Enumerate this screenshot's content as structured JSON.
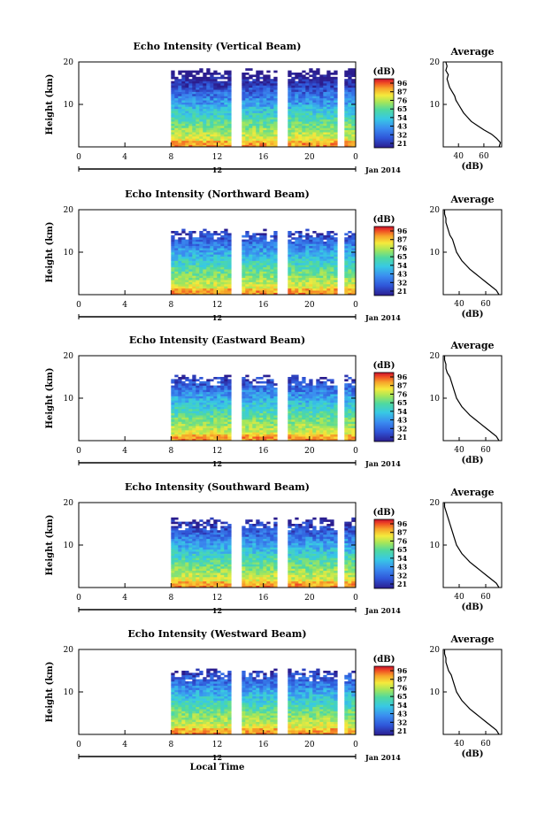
{
  "chart_data": [
    {
      "type": "heatmap",
      "title": "Echo Intensity (Vertical Beam)",
      "ylabel": "Height (km)",
      "yticks": [
        "20",
        "10"
      ],
      "xticks": [
        "0",
        "4",
        "8",
        "12",
        "16",
        "20",
        "0"
      ],
      "date_tick": "12",
      "date_label": "Jan 2014",
      "ylim": [
        0,
        20
      ],
      "xlim": [
        0,
        24
      ],
      "data_start_hour": 8,
      "gaps_hours": [
        13.5,
        17.5,
        22.5
      ],
      "cloud_top_km": 18,
      "colorbar": {
        "title": "(dB)",
        "levels": [
          "96",
          "87",
          "76",
          "65",
          "54",
          "43",
          "32",
          "21"
        ]
      },
      "profile": {
        "title": "Average",
        "xlabel": "(dB)",
        "xticks": [
          "40",
          "60"
        ],
        "yticks": [
          "20",
          "10"
        ],
        "xlim": [
          28,
          74
        ],
        "ylim": [
          0,
          20
        ],
        "points": [
          [
            72,
            0
          ],
          [
            73,
            1
          ],
          [
            70,
            2
          ],
          [
            66,
            3
          ],
          [
            60,
            4
          ],
          [
            55,
            5
          ],
          [
            50,
            6
          ],
          [
            47,
            7
          ],
          [
            44,
            8
          ],
          [
            42,
            9
          ],
          [
            40,
            10
          ],
          [
            38,
            11
          ],
          [
            37,
            12
          ],
          [
            35,
            13
          ],
          [
            33,
            14
          ],
          [
            32,
            15
          ],
          [
            31,
            16
          ],
          [
            32,
            17
          ],
          [
            30,
            18
          ],
          [
            31,
            19
          ],
          [
            30,
            20
          ]
        ]
      }
    },
    {
      "type": "heatmap",
      "title": "Echo Intensity (Northward Beam)",
      "ylabel": "Height (km)",
      "yticks": [
        "20",
        "10"
      ],
      "xticks": [
        "0",
        "4",
        "8",
        "12",
        "16",
        "20",
        "0"
      ],
      "date_tick": "12",
      "date_label": "Jan 2014",
      "ylim": [
        0,
        20
      ],
      "xlim": [
        0,
        24
      ],
      "data_start_hour": 8,
      "gaps_hours": [
        13.5,
        17.5,
        22.5
      ],
      "cloud_top_km": 15,
      "colorbar": {
        "title": "(dB)",
        "levels": [
          "96",
          "87",
          "76",
          "65",
          "54",
          "43",
          "32",
          "21"
        ]
      },
      "profile": {
        "title": "Average",
        "xlabel": "(dB)",
        "xticks": [
          "40",
          "60"
        ],
        "yticks": [
          "20",
          "10"
        ],
        "xlim": [
          28,
          72
        ],
        "ylim": [
          0,
          20
        ],
        "points": [
          [
            70,
            0
          ],
          [
            68,
            1
          ],
          [
            64,
            2
          ],
          [
            60,
            3
          ],
          [
            56,
            4
          ],
          [
            52,
            5
          ],
          [
            48,
            6
          ],
          [
            45,
            7
          ],
          [
            42,
            8
          ],
          [
            40,
            9
          ],
          [
            38,
            10
          ],
          [
            37,
            11
          ],
          [
            36,
            12
          ],
          [
            35,
            13
          ],
          [
            33,
            14
          ],
          [
            32,
            15
          ],
          [
            31,
            16
          ],
          [
            30,
            17
          ],
          [
            30,
            18
          ],
          [
            29,
            19
          ],
          [
            29,
            20
          ]
        ]
      }
    },
    {
      "type": "heatmap",
      "title": "Echo Intensity (Eastward Beam)",
      "ylabel": "Height (km)",
      "yticks": [
        "20",
        "10"
      ],
      "xticks": [
        "0",
        "4",
        "8",
        "12",
        "16",
        "20",
        "0"
      ],
      "date_tick": "12",
      "date_label": "Jan 2014",
      "ylim": [
        0,
        20
      ],
      "xlim": [
        0,
        24
      ],
      "data_start_hour": 8,
      "gaps_hours": [
        13.5,
        17.5,
        22.5
      ],
      "cloud_top_km": 15,
      "colorbar": {
        "title": "(dB)",
        "levels": [
          "96",
          "87",
          "76",
          "65",
          "54",
          "43",
          "32",
          "21"
        ]
      },
      "profile": {
        "title": "Average",
        "xlabel": "(dB)",
        "xticks": [
          "40",
          "60"
        ],
        "yticks": [
          "20",
          "10"
        ],
        "xlim": [
          28,
          72
        ],
        "ylim": [
          0,
          20
        ],
        "points": [
          [
            70,
            0
          ],
          [
            68,
            1
          ],
          [
            64,
            2
          ],
          [
            60,
            3
          ],
          [
            56,
            4
          ],
          [
            52,
            5
          ],
          [
            48,
            6
          ],
          [
            45,
            7
          ],
          [
            42,
            8
          ],
          [
            40,
            9
          ],
          [
            38,
            10
          ],
          [
            37,
            11
          ],
          [
            36,
            12
          ],
          [
            35,
            13
          ],
          [
            34,
            14
          ],
          [
            33,
            15
          ],
          [
            31,
            16
          ],
          [
            30,
            17
          ],
          [
            30,
            18
          ],
          [
            29,
            19
          ],
          [
            29,
            20
          ]
        ]
      }
    },
    {
      "type": "heatmap",
      "title": "Echo Intensity (Southward Beam)",
      "ylabel": "Height (km)",
      "yticks": [
        "20",
        "10"
      ],
      "xticks": [
        "0",
        "4",
        "8",
        "12",
        "16",
        "20",
        "0"
      ],
      "date_tick": "12",
      "date_label": "Jan 2014",
      "ylim": [
        0,
        20
      ],
      "xlim": [
        0,
        24
      ],
      "data_start_hour": 8,
      "gaps_hours": [
        13.5,
        17.5,
        22.5
      ],
      "cloud_top_km": 16,
      "colorbar": {
        "title": "(dB)",
        "levels": [
          "96",
          "87",
          "76",
          "65",
          "54",
          "43",
          "32",
          "21"
        ]
      },
      "profile": {
        "title": "Average",
        "xlabel": "(dB)",
        "xticks": [
          "40",
          "60"
        ],
        "yticks": [
          "20",
          "10"
        ],
        "xlim": [
          28,
          72
        ],
        "ylim": [
          0,
          20
        ],
        "points": [
          [
            70,
            0
          ],
          [
            68,
            1
          ],
          [
            64,
            2
          ],
          [
            60,
            3
          ],
          [
            56,
            4
          ],
          [
            52,
            5
          ],
          [
            48,
            6
          ],
          [
            45,
            7
          ],
          [
            42,
            8
          ],
          [
            40,
            9
          ],
          [
            38,
            10
          ],
          [
            37,
            11
          ],
          [
            36,
            12
          ],
          [
            35,
            13
          ],
          [
            34,
            14
          ],
          [
            33,
            15
          ],
          [
            32,
            16
          ],
          [
            31,
            17
          ],
          [
            30,
            18
          ],
          [
            29,
            19
          ],
          [
            29,
            20
          ]
        ]
      }
    },
    {
      "type": "heatmap",
      "title": "Echo Intensity (Westward Beam)",
      "ylabel": "Height (km)",
      "yticks": [
        "20",
        "10"
      ],
      "xticks": [
        "0",
        "4",
        "8",
        "12",
        "16",
        "20",
        "0"
      ],
      "date_tick": "12",
      "date_label": "Jan 2014",
      "xlabel": "Local Time",
      "ylim": [
        0,
        20
      ],
      "xlim": [
        0,
        24
      ],
      "data_start_hour": 8,
      "gaps_hours": [
        13.5,
        17.5,
        22.5
      ],
      "cloud_top_km": 15,
      "colorbar": {
        "title": "(dB)",
        "levels": [
          "96",
          "87",
          "76",
          "65",
          "54",
          "43",
          "32",
          "21"
        ]
      },
      "profile": {
        "title": "Average",
        "xlabel": "(dB)",
        "xticks": [
          "40",
          "60"
        ],
        "yticks": [
          "20",
          "10"
        ],
        "xlim": [
          28,
          72
        ],
        "ylim": [
          0,
          20
        ],
        "points": [
          [
            70,
            0
          ],
          [
            68,
            1
          ],
          [
            64,
            2
          ],
          [
            60,
            3
          ],
          [
            56,
            4
          ],
          [
            52,
            5
          ],
          [
            48,
            6
          ],
          [
            45,
            7
          ],
          [
            42,
            8
          ],
          [
            40,
            9
          ],
          [
            38,
            10
          ],
          [
            37,
            11
          ],
          [
            36,
            12
          ],
          [
            35,
            13
          ],
          [
            34,
            14
          ],
          [
            32,
            15
          ],
          [
            31,
            16
          ],
          [
            30,
            17
          ],
          [
            30,
            18
          ],
          [
            29,
            19
          ],
          [
            29,
            20
          ]
        ]
      }
    }
  ],
  "colors": {
    "ramp": [
      "#2b1d8e",
      "#2f55d8",
      "#3a8cf0",
      "#38c9e4",
      "#4fd9a0",
      "#a5e65a",
      "#f5ea3c",
      "#f7a52a",
      "#f04b23",
      "#c8102e"
    ]
  }
}
